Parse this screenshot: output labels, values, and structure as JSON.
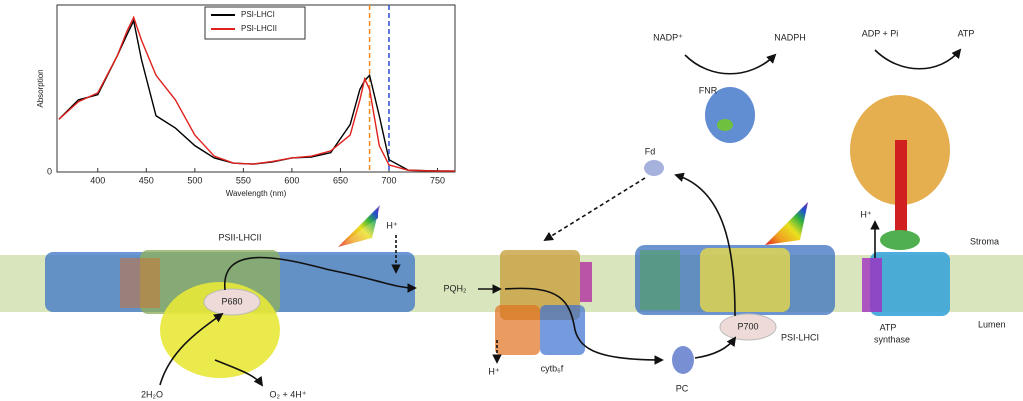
{
  "chart_data": {
    "type": "line",
    "x_label": "Wavelength (nm)",
    "y_label": "Absorption",
    "x": [
      360,
      380,
      400,
      420,
      430,
      437,
      445,
      460,
      480,
      500,
      520,
      540,
      560,
      580,
      600,
      620,
      640,
      660,
      670,
      675,
      680,
      690,
      700,
      720,
      750,
      768
    ],
    "series": [
      {
        "name": "PSI-LHCI",
        "color": "#000000",
        "values": [
          0.3,
          0.41,
          0.44,
          0.66,
          0.78,
          0.86,
          0.64,
          0.32,
          0.25,
          0.15,
          0.08,
          0.05,
          0.045,
          0.057,
          0.08,
          0.085,
          0.11,
          0.27,
          0.47,
          0.52,
          0.55,
          0.32,
          0.07,
          0.01,
          0.006,
          0.005
        ]
      },
      {
        "name": "PSI-LHCII",
        "color": "#e0201c",
        "values": [
          0.3,
          0.4,
          0.45,
          0.66,
          0.8,
          0.88,
          0.75,
          0.55,
          0.41,
          0.21,
          0.09,
          0.05,
          0.045,
          0.06,
          0.08,
          0.09,
          0.12,
          0.21,
          0.41,
          0.53,
          0.47,
          0.15,
          0.04,
          0.01,
          0.005,
          0.005
        ]
      }
    ],
    "markers": [
      {
        "x": 680,
        "color": "#f08a1c"
      },
      {
        "x": 700,
        "color": "#2a4fd0"
      }
    ],
    "xlim": [
      358,
      768
    ],
    "xticks": [
      400,
      450,
      500,
      550,
      600,
      650,
      700,
      750
    ],
    "ylim": [
      0,
      0.95
    ],
    "yticks": [
      0
    ],
    "legend": "top"
  },
  "labels": {
    "psii": "PSII-LHCII",
    "p680": "P680",
    "water": "2H₂O",
    "oxygen": "O₂ + 4H⁺",
    "h_left": "H⁺",
    "pqh2": "PQH₂",
    "h_cyt": "H⁺",
    "cyt": "cytb₆f",
    "pc": "PC",
    "fd": "Fd",
    "fnr": "FNR",
    "nadp": "NADP⁺",
    "nadph": "NADPH",
    "p700": "P700",
    "psi": "PSI-LHCI",
    "adp": "ADP + Pi",
    "atp": "ATP",
    "h_atp": "H⁺",
    "stroma": "Stroma",
    "lumen": "Lumen",
    "synthase": [
      "ATP",
      "synthase"
    ]
  }
}
